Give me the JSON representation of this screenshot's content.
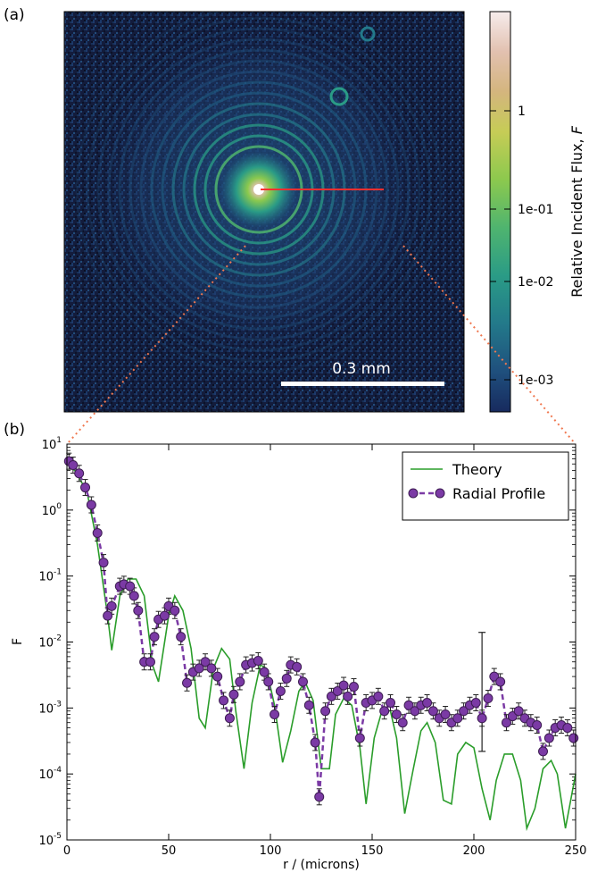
{
  "panel_a": {
    "label": "(a)",
    "scalebar_text": "0.3 mm",
    "colorbar": {
      "label_prefix": "Relative Incident Flux, ",
      "label_var": "F",
      "ticks": [
        "1",
        "1e-01",
        "1e-02",
        "1e-03"
      ],
      "colors": [
        "#172a5e",
        "#1f4f7d",
        "#23798a",
        "#2a9b86",
        "#4fb46f",
        "#8cc94e",
        "#c6cc56",
        "#d4b57e",
        "#e2c1b0",
        "#f6ecec"
      ]
    }
  },
  "panel_b": {
    "label": "(b)",
    "theory_color": "#2a9d2a",
    "profile_color": "#7b3aa5"
  },
  "chart_data": {
    "type": "line",
    "xlabel": "r / (microns)",
    "ylabel": "F",
    "xlim": [
      0,
      250
    ],
    "ylim": [
      1e-05,
      10
    ],
    "yscale": "log",
    "xticks": [
      "0",
      "50",
      "100",
      "150",
      "200",
      "250"
    ],
    "yticks": [
      "10^1",
      "10^0",
      "10^-1",
      "10^-2",
      "10^-3",
      "10^-4",
      "10^-5"
    ],
    "legend_position": "top-right",
    "series": [
      {
        "name": "Theory",
        "style": "solid line",
        "x": [
          0,
          5,
          10,
          15,
          20,
          22,
          26,
          30,
          34,
          38,
          42,
          45,
          50,
          53,
          57,
          61,
          65,
          68,
          72,
          76,
          80,
          83,
          87,
          91,
          95,
          98,
          102,
          106,
          110,
          114,
          117,
          121,
          125,
          129,
          132,
          136,
          140,
          144,
          147,
          151,
          155,
          159,
          162,
          166,
          170,
          174,
          177,
          181,
          185,
          189,
          192,
          196,
          200,
          204,
          208,
          211,
          215,
          219,
          223,
          226,
          230,
          234,
          238,
          241,
          245,
          250
        ],
        "y": [
          5.5,
          3.6,
          1.8,
          0.3,
          0.025,
          0.0075,
          0.05,
          0.09,
          0.09,
          0.05,
          0.0045,
          0.0025,
          0.025,
          0.05,
          0.03,
          0.008,
          0.0007,
          0.0005,
          0.004,
          0.008,
          0.0055,
          0.0009,
          0.00012,
          0.0012,
          0.0045,
          0.004,
          0.0011,
          0.00015,
          0.00045,
          0.0018,
          0.0025,
          0.0013,
          0.00012,
          0.00012,
          0.0008,
          0.0014,
          0.0011,
          0.00025,
          3.5e-05,
          0.00035,
          0.00095,
          0.0009,
          0.00035,
          2.5e-05,
          0.00011,
          0.00045,
          0.0006,
          0.0003,
          4e-05,
          3.5e-05,
          0.0002,
          0.0003,
          0.00025,
          6e-05,
          2e-05,
          8e-05,
          0.0002,
          0.0002,
          8e-05,
          1.5e-05,
          3e-05,
          0.00012,
          0.00016,
          0.0001,
          1.5e-05,
          0.0001
        ]
      },
      {
        "name": "Radial Profile",
        "style": "dashed line with circle markers and error bars",
        "x": [
          1,
          3,
          6,
          9,
          12,
          15,
          18,
          20,
          22,
          26,
          28,
          31,
          33,
          35,
          38,
          41,
          43,
          45,
          48,
          50,
          53,
          56,
          59,
          62,
          65,
          68,
          71,
          74,
          77,
          80,
          82,
          85,
          88,
          91,
          94,
          97,
          99,
          102,
          105,
          108,
          110,
          113,
          116,
          119,
          122,
          124,
          127,
          130,
          133,
          136,
          138,
          141,
          144,
          147,
          150,
          153,
          156,
          159,
          162,
          165,
          168,
          171,
          174,
          177,
          180,
          183,
          186,
          189,
          192,
          195,
          198,
          201,
          204,
          207,
          210,
          213,
          216,
          219,
          222,
          225,
          228,
          231,
          234,
          237,
          240,
          243,
          246,
          249
        ],
        "y": [
          5.5,
          4.8,
          3.6,
          2.2,
          1.2,
          0.45,
          0.16,
          0.025,
          0.035,
          0.07,
          0.075,
          0.07,
          0.05,
          0.03,
          0.005,
          0.005,
          0.012,
          0.022,
          0.025,
          0.035,
          0.03,
          0.012,
          0.0024,
          0.0035,
          0.004,
          0.005,
          0.004,
          0.003,
          0.0013,
          0.0007,
          0.0016,
          0.0025,
          0.0045,
          0.0048,
          0.0052,
          0.0035,
          0.0025,
          0.0008,
          0.0018,
          0.0028,
          0.0045,
          0.0042,
          0.0025,
          0.0011,
          0.0003,
          4.5e-05,
          0.0009,
          0.0015,
          0.0018,
          0.0022,
          0.0015,
          0.0021,
          0.00035,
          0.0012,
          0.0013,
          0.0015,
          0.0009,
          0.0012,
          0.0008,
          0.0006,
          0.0011,
          0.0009,
          0.0011,
          0.0012,
          0.0009,
          0.0007,
          0.0008,
          0.0006,
          0.0007,
          0.0009,
          0.0011,
          0.0012,
          0.0007,
          0.0014,
          0.003,
          0.0025,
          0.0006,
          0.00075,
          0.0009,
          0.0007,
          0.0006,
          0.00055,
          0.00022,
          0.00035,
          0.0005,
          0.00055,
          0.0005,
          0.00035
        ],
        "error_bars": [
          {
            "x": 204,
            "low": 0.00022,
            "high": 0.014
          }
        ]
      }
    ]
  }
}
